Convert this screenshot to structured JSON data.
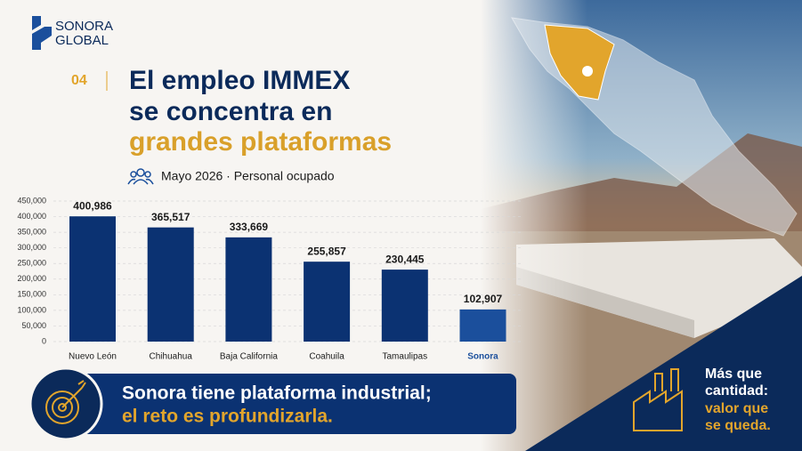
{
  "brand": {
    "line1": "SONORA",
    "line2": "GLOBAL"
  },
  "slide": {
    "number": "04",
    "title_line1": "El empleo IMMEX",
    "title_line2": "se concentra en",
    "title_line3": "grandes plataformas",
    "subtitle": "Mayo 2026 · Personal ocupado"
  },
  "banner": {
    "line1": "Sonora tiene plataforma industrial;",
    "line2": "el reto es profundizarla."
  },
  "corner": {
    "line1": "Más que",
    "line2": "cantidad:",
    "line3": "valor que",
    "line4": "se queda."
  },
  "chart_data": {
    "type": "bar",
    "categories": [
      "Nuevo León",
      "Chihuahua",
      "Baja California",
      "Coahuila",
      "Tamaulipas",
      "Sonora"
    ],
    "values": [
      400986,
      365517,
      333669,
      255857,
      230445,
      102907
    ],
    "value_labels": [
      "400,986",
      "365,517",
      "333,669",
      "255,857",
      "230,445",
      "102,907"
    ],
    "colors": [
      "#0b3272",
      "#0b3272",
      "#0b3272",
      "#0b3272",
      "#0b3272",
      "#1b4f9c"
    ],
    "label_colors": [
      "#1a1a1a",
      "#1a1a1a",
      "#1a1a1a",
      "#1a1a1a",
      "#1a1a1a",
      "#1b4f9c"
    ],
    "ylim": [
      0,
      450000
    ],
    "yticks": [
      0,
      {
        "value": 50000,
        "label": "50,000"
      },
      {
        "value": 100000,
        "label": "100,000"
      },
      {
        "value": 150000,
        "label": "150,000"
      },
      {
        "value": 200000,
        "label": "200,000"
      },
      {
        "value": 250000,
        "label": "250,000"
      },
      {
        "value": 300000,
        "label": "300,000"
      },
      {
        "value": 350000,
        "label": "350,000"
      },
      {
        "value": 400000,
        "label": "400,000"
      },
      {
        "value": 450000,
        "label": "450,000"
      }
    ],
    "grid": true
  }
}
